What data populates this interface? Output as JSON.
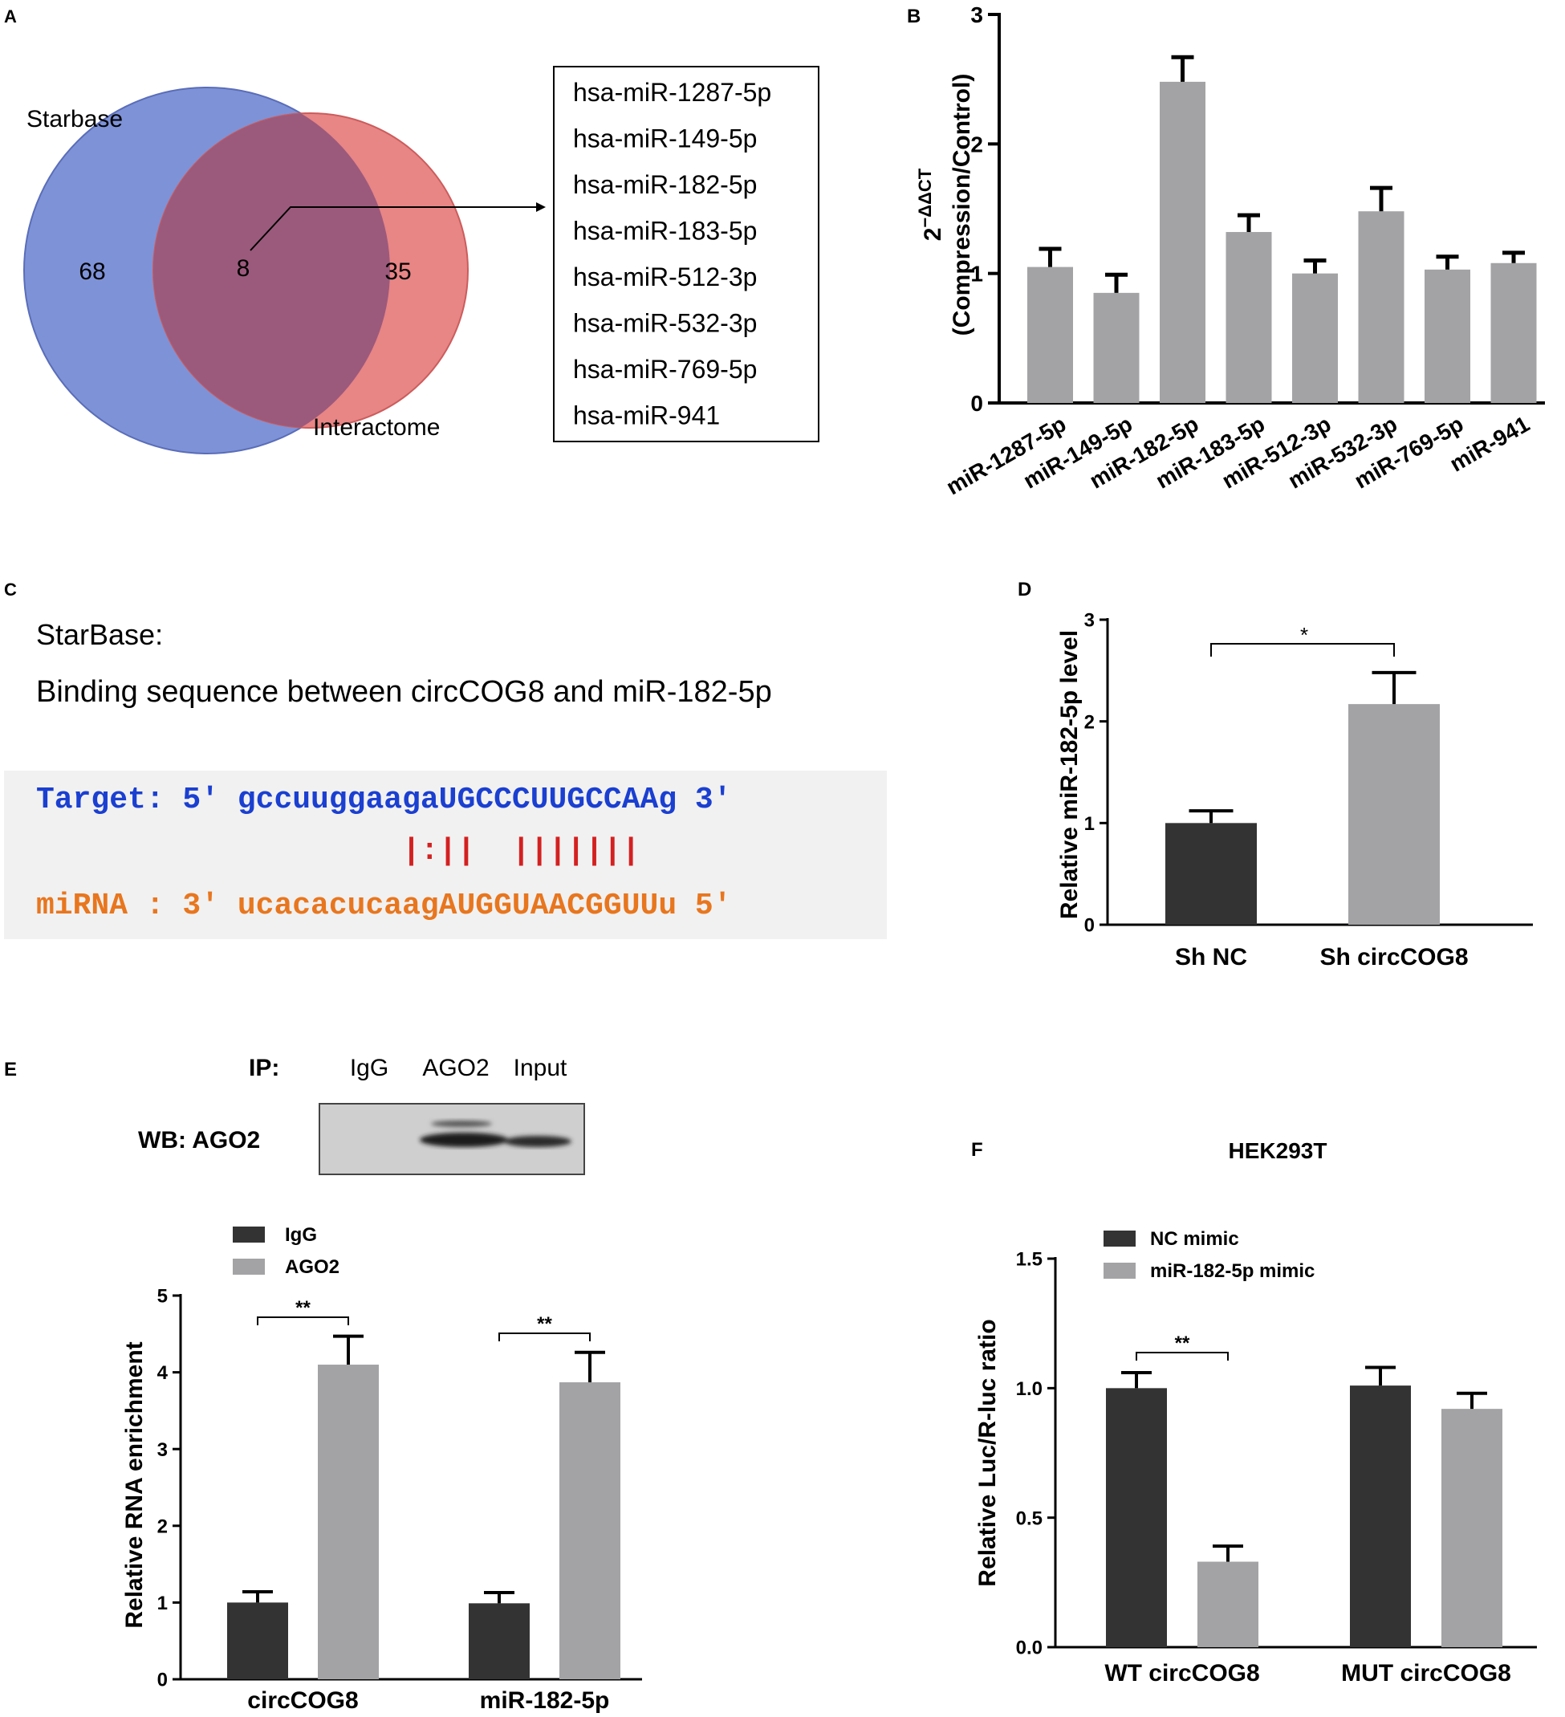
{
  "panel_labels": {
    "A": "A",
    "B": "B",
    "C": "C",
    "D": "D",
    "E": "E",
    "F": "F"
  },
  "venn": {
    "left_label": "Starbase",
    "right_label": "Interactome",
    "left_count": "68",
    "overlap_count": "8",
    "right_count": "35",
    "left_color": "#7e92d8",
    "right_color": "#e88585",
    "overlap_color": "#9b5a7c",
    "mirna_list": [
      "hsa-miR-1287-5p",
      "hsa-miR-149-5p",
      "hsa-miR-182-5p",
      "hsa-miR-183-5p",
      "hsa-miR-512-3p",
      "hsa-miR-532-3p",
      "hsa-miR-769-5p",
      "hsa-miR-941"
    ]
  },
  "binding": {
    "source": "StarBase:",
    "title": "Binding sequence between circCOG8 and miR-182-5p",
    "target_line": "Target: 5' gccuuggaagaUGCCCUUGCCAAg 3'",
    "pairing": "|:||  |||||||",
    "mirna_line": "miRNA : 3' ucacacucaagAUGGUAACGGUUu 5'",
    "target_color": "#1a3fd1",
    "mirna_color": "#e8761e",
    "pair_color": "#d42020"
  },
  "western": {
    "ip_label": "IP:",
    "lanes": [
      "IgG",
      "AGO2",
      "Input"
    ],
    "wb_label": "WB:  AGO2"
  },
  "chart_data": [
    {
      "id": "B",
      "type": "bar",
      "title": "",
      "ylabel_main": "2^−ΔΔCT",
      "ylabel_sub": "(Compression/Control)",
      "ylabel_base": "2",
      "ylabel_exp": "−ΔΔCT",
      "categories": [
        "miR-1287-5p",
        "miR-149-5p",
        "miR-182-5p",
        "miR-183-5p",
        "miR-512-3p",
        "miR-532-3p",
        "miR-769-5p",
        "miR-941"
      ],
      "values": [
        1.05,
        0.85,
        2.48,
        1.32,
        1.0,
        1.48,
        1.03,
        1.08
      ],
      "errors": [
        0.14,
        0.14,
        0.19,
        0.13,
        0.1,
        0.18,
        0.1,
        0.08
      ],
      "ylim": [
        0,
        3
      ],
      "yticks": [
        "0",
        "1",
        "2",
        "3"
      ],
      "bar_color": "#a3a3a6"
    },
    {
      "id": "D",
      "type": "bar",
      "ylabel": "Relative  miR-182-5p level",
      "categories": [
        "Sh NC",
        "Sh circCOG8"
      ],
      "values": [
        1.0,
        2.17
      ],
      "errors": [
        0.12,
        0.31
      ],
      "colors": [
        "#333333",
        "#a3a3a6"
      ],
      "ylim": [
        0,
        3
      ],
      "yticks": [
        "0",
        "1",
        "2",
        "3"
      ],
      "significance": "*"
    },
    {
      "id": "E",
      "type": "bar",
      "ylabel": "Relative RNA enrichment",
      "categories": [
        "circCOG8",
        "miR-182-5p"
      ],
      "series": [
        {
          "name": "IgG",
          "values": [
            1.0,
            0.99
          ],
          "errors": [
            0.14,
            0.14
          ],
          "color": "#333333"
        },
        {
          "name": "AGO2",
          "values": [
            4.1,
            3.87
          ],
          "errors": [
            0.37,
            0.39
          ],
          "color": "#a3a3a6"
        }
      ],
      "ylim": [
        0,
        5
      ],
      "yticks": [
        "0",
        "1",
        "2",
        "3",
        "4",
        "5"
      ],
      "significance": [
        "**",
        "**"
      ]
    },
    {
      "id": "F",
      "type": "bar",
      "title": "HEK293T",
      "ylabel": "Relative Luc/R-luc ratio",
      "categories": [
        "WT circCOG8",
        "MUT circCOG8"
      ],
      "series": [
        {
          "name": "NC mimic",
          "values": [
            1.0,
            1.01
          ],
          "errors": [
            0.06,
            0.07
          ],
          "color": "#333333"
        },
        {
          "name": "miR-182-5p mimic",
          "values": [
            0.33,
            0.92
          ],
          "errors": [
            0.06,
            0.06
          ],
          "color": "#a3a3a6"
        }
      ],
      "ylim": [
        0,
        1.5
      ],
      "yticks": [
        "0.0",
        "0.5",
        "1.0",
        "1.5"
      ],
      "significance": [
        "**"
      ]
    }
  ]
}
